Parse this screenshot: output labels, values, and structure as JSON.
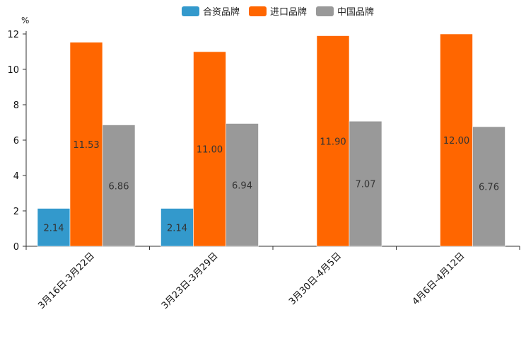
{
  "chart_data": {
    "type": "bar",
    "title": "",
    "xlabel": "",
    "ylabel": "%",
    "ylim": [
      0,
      12
    ],
    "yticks": [
      0,
      2,
      4,
      6,
      8,
      10,
      12
    ],
    "grid": false,
    "legend_position": "top-center",
    "categories": [
      "3月16日-3月22日",
      "3月23日-3月29日",
      "3月30日-4月5日",
      "4月6日-4月12日"
    ],
    "series": [
      {
        "name": "合资品牌",
        "color": "#3399cc",
        "values": [
          2.14,
          2.14,
          null,
          null
        ],
        "labels": [
          "2.14",
          "2.14",
          null,
          null
        ]
      },
      {
        "name": "进口品牌",
        "color": "#ff6600",
        "values": [
          11.53,
          11.0,
          11.9,
          12.0
        ],
        "labels": [
          "11.53",
          "11.00",
          "11.90",
          "12.00"
        ]
      },
      {
        "name": "中国品牌",
        "color": "#999999",
        "values": [
          6.86,
          6.94,
          7.07,
          6.76
        ],
        "labels": [
          "6.86",
          "6.94",
          "7.07",
          "6.76"
        ]
      }
    ]
  }
}
